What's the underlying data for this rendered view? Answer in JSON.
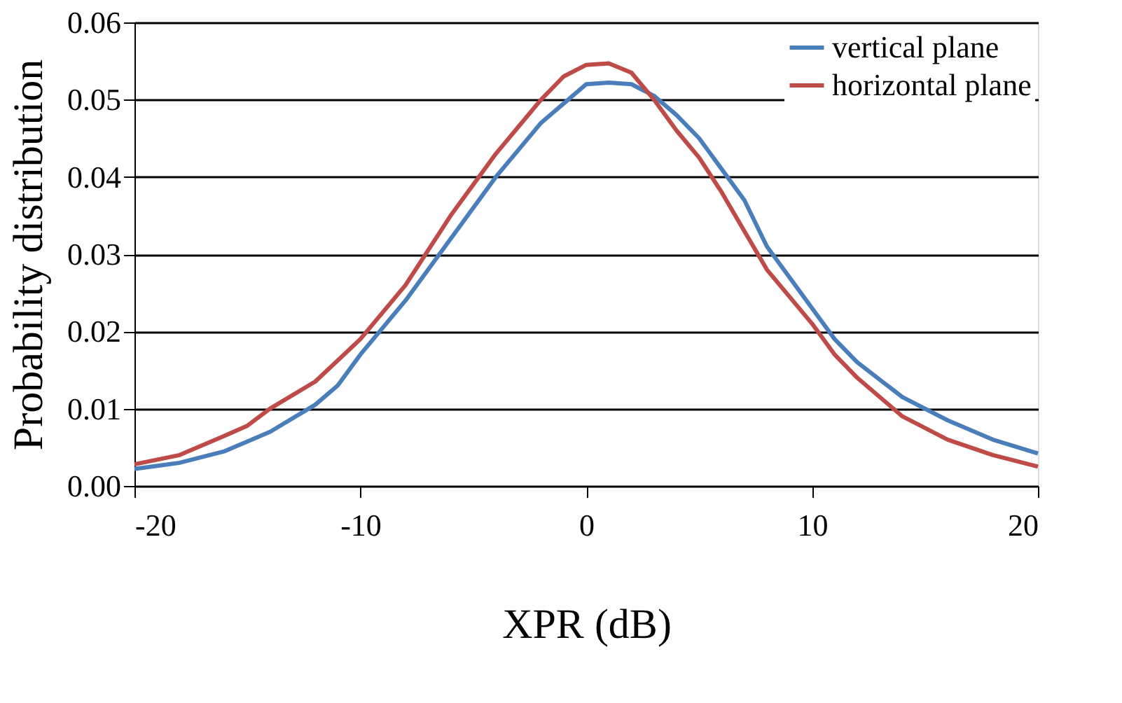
{
  "chart_data": {
    "type": "line",
    "xlabel": "XPR (dB)",
    "ylabel": "Probability distribution",
    "xlim": [
      -20,
      20
    ],
    "xticks": [
      -20,
      -10,
      0,
      10,
      20
    ],
    "ylim": [
      0,
      0.06
    ],
    "yticks": [
      {
        "value": 0,
        "label": "0.00"
      },
      {
        "value": 0.01,
        "label": "0.01"
      },
      {
        "value": 0.02,
        "label": "0.02"
      },
      {
        "value": 0.03,
        "label": "0.03"
      },
      {
        "value": 0.04,
        "label": "0.04"
      },
      {
        "value": 0.05,
        "label": "0.05"
      },
      {
        "value": 0.06,
        "label": "0.06"
      }
    ],
    "grid": "y",
    "legend": "top right",
    "line_style": "solid",
    "series": [
      {
        "name": "vertical plane",
        "color": "#4a7ebb",
        "x": [
          -20,
          -18,
          -16,
          -14,
          -12,
          -11,
          -10,
          -8,
          -6,
          -4,
          -2,
          -1,
          0,
          1,
          2,
          3,
          4,
          5,
          6,
          7,
          8,
          10,
          11,
          12,
          14,
          16,
          18,
          20
        ],
        "values": [
          0.0022,
          0.003,
          0.0045,
          0.007,
          0.0105,
          0.013,
          0.017,
          0.024,
          0.032,
          0.04,
          0.047,
          0.0495,
          0.052,
          0.0522,
          0.052,
          0.0505,
          0.048,
          0.045,
          0.041,
          0.037,
          0.031,
          0.023,
          0.019,
          0.016,
          0.0115,
          0.0085,
          0.006,
          0.0042
        ]
      },
      {
        "name": "horizontal plane",
        "color": "#be4b48",
        "x": [
          -20,
          -18,
          -16,
          -15,
          -14,
          -12,
          -10,
          -8,
          -6,
          -4,
          -2,
          -1,
          0,
          1,
          2,
          3,
          4,
          5,
          6,
          7,
          8,
          10,
          11,
          12,
          14,
          16,
          18,
          20
        ],
        "values": [
          0.0028,
          0.004,
          0.0065,
          0.0078,
          0.01,
          0.0135,
          0.019,
          0.026,
          0.035,
          0.043,
          0.05,
          0.053,
          0.0545,
          0.0547,
          0.0535,
          0.05,
          0.046,
          0.0425,
          0.038,
          0.033,
          0.028,
          0.021,
          0.017,
          0.014,
          0.009,
          0.006,
          0.004,
          0.0025
        ]
      }
    ]
  }
}
